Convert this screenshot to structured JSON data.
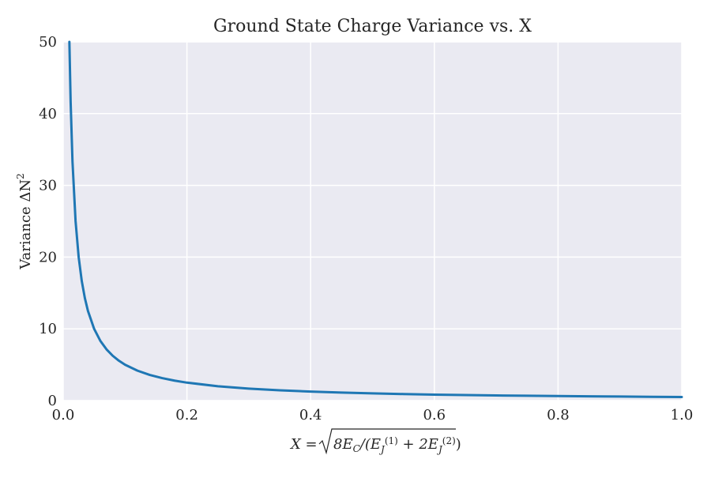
{
  "chart_data": {
    "type": "line",
    "title": "Ground State Charge Variance vs. X",
    "xlabel_parts": {
      "lhs": "X = ",
      "inner_prefix": "8E",
      "inner_sub_c": "C",
      "inner_mid": "/(E",
      "inner_sub_j1": "J",
      "inner_sup_1": "(1)",
      "inner_plus": " + 2E",
      "inner_sub_j2": "J",
      "inner_sup_2": "(2)",
      "inner_close": ")"
    },
    "ylabel_parts": {
      "prefix": "Variance ΔN",
      "sup": "2"
    },
    "xlim": [
      0.0,
      1.0
    ],
    "ylim": [
      0,
      50
    ],
    "xticks": [
      0.0,
      0.2,
      0.4,
      0.6,
      0.8,
      1.0
    ],
    "xtick_labels": [
      "0.0",
      "0.2",
      "0.4",
      "0.6",
      "0.8",
      "1.0"
    ],
    "yticks": [
      0,
      10,
      20,
      30,
      40,
      50
    ],
    "ytick_labels": [
      "0",
      "10",
      "20",
      "30",
      "40",
      "50"
    ],
    "grid": true,
    "series": [
      {
        "color": "#1f77b4",
        "x": [
          0.01,
          0.012,
          0.015,
          0.02,
          0.025,
          0.03,
          0.035,
          0.04,
          0.05,
          0.06,
          0.07,
          0.08,
          0.09,
          0.1,
          0.12,
          0.14,
          0.16,
          0.18,
          0.2,
          0.25,
          0.3,
          0.35,
          0.4,
          0.45,
          0.5,
          0.55,
          0.6,
          0.65,
          0.7,
          0.75,
          0.8,
          0.85,
          0.9,
          0.95,
          1.0
        ],
        "y": [
          50,
          41.67,
          33.33,
          25,
          20,
          16.67,
          14.29,
          12.5,
          10,
          8.33,
          7.14,
          6.25,
          5.56,
          5,
          4.17,
          3.57,
          3.13,
          2.78,
          2.5,
          2,
          1.67,
          1.43,
          1.25,
          1.11,
          1,
          0.91,
          0.83,
          0.77,
          0.71,
          0.67,
          0.63,
          0.59,
          0.56,
          0.53,
          0.5
        ]
      }
    ]
  }
}
